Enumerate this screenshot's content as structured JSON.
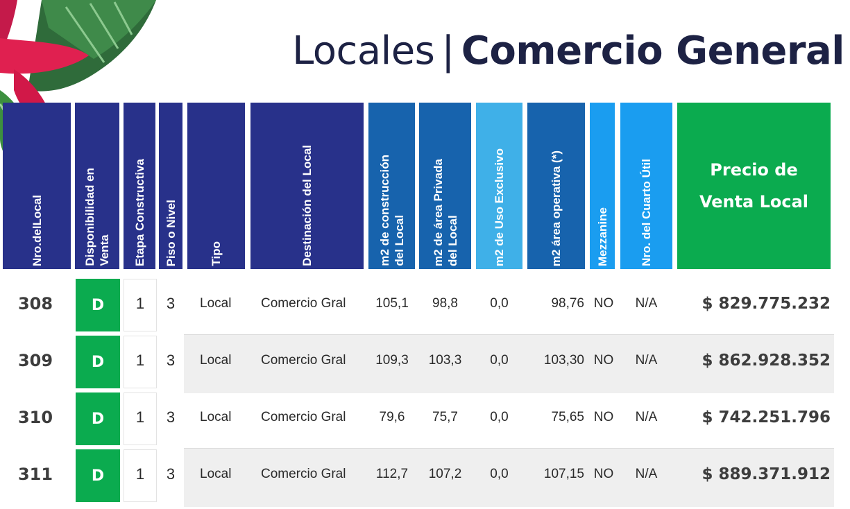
{
  "title": {
    "light": "Locales",
    "separator": "|",
    "bold": "Comercio General"
  },
  "headers": {
    "nro": "Nro.delLocal",
    "disponibilidad": "Disponibilidad en\nVenta",
    "etapa": "Etapa Constructiva",
    "piso": "Piso o Nivel",
    "tipo": "Tipo",
    "destinacion": "Destinación del Local",
    "m2_construccion": "m2 de construcción\ndel Local",
    "m2_privada": "m2 de área Privada\ndel Local",
    "m2_uso": "m2 de Uso Exclusivo",
    "m2_operativa": "m2 área operativa (*)",
    "mezzanine": "Mezzanine",
    "cuarto_util": "Nro. del Cuarto Útil",
    "precio": "Precio de\nVenta  Local"
  },
  "rows": [
    {
      "nro": "308",
      "disp": "D",
      "etapa": "1",
      "piso": "3",
      "tipo": "Local",
      "destinacion": "Comercio Gral",
      "m2c": "105,1",
      "m2p": "98,8",
      "m2u": "0,0",
      "m2o": "98,76",
      "mezz": "NO",
      "cuarto": "N/A",
      "precio": "$ 829.775.232"
    },
    {
      "nro": "309",
      "disp": "D",
      "etapa": "1",
      "piso": "3",
      "tipo": "Local",
      "destinacion": "Comercio Gral",
      "m2c": "109,3",
      "m2p": "103,3",
      "m2u": "0,0",
      "m2o": "103,30",
      "mezz": "NO",
      "cuarto": "N/A",
      "precio": "$ 862.928.352"
    },
    {
      "nro": "310",
      "disp": "D",
      "etapa": "1",
      "piso": "3",
      "tipo": "Local",
      "destinacion": "Comercio Gral",
      "m2c": "79,6",
      "m2p": "75,7",
      "m2u": "0,0",
      "m2o": "75,65",
      "mezz": "NO",
      "cuarto": "N/A",
      "precio": "$ 742.251.796"
    },
    {
      "nro": "311",
      "disp": "D",
      "etapa": "1",
      "piso": "3",
      "tipo": "Local",
      "destinacion": "Comercio Gral",
      "m2c": "112,7",
      "m2p": "107,2",
      "m2u": "0,0",
      "m2o": "107,15",
      "mezz": "NO",
      "cuarto": "N/A",
      "precio": "$ 889.371.912"
    }
  ],
  "colors": {
    "navy": "#28318a",
    "blue": "#1763ad",
    "sky": "#3fb0e8",
    "cyan": "#1a9df0",
    "green": "#0bab4f",
    "title": "#1d2244"
  },
  "icons": {
    "decoration": "tropical-leaf-flower-icon"
  }
}
